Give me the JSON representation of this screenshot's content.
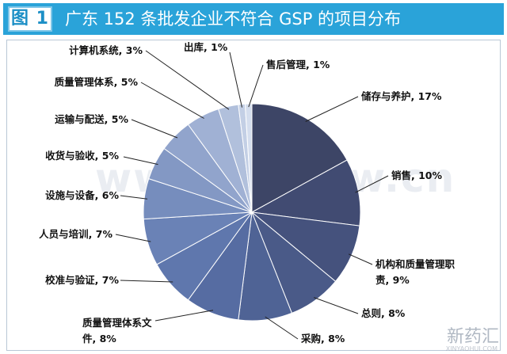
{
  "header": {
    "figure_label": "图 1",
    "title": "广东 152 条批发企业不符合 GSP 的项目分布",
    "background_color": "#2aa3d9"
  },
  "watermark": "www.yaosjw.cn",
  "brand": {
    "name": "新药汇",
    "sub": "XINYAOHUI.COM"
  },
  "chart_data": {
    "type": "pie",
    "title": "广东 152 条批发企业不符合 GSP 的项目分布",
    "slices": [
      {
        "label": "储存与养护, 17%",
        "value": 17,
        "color": "#3d4566"
      },
      {
        "label": "销售, 10%",
        "value": 10,
        "color": "#414b72"
      },
      {
        "label": "机构和质量管理职责, 9%",
        "value": 9,
        "color": "#45527d"
      },
      {
        "label": "总则, 8%",
        "value": 8,
        "color": "#4a5a88"
      },
      {
        "label": "采购, 8%",
        "value": 8,
        "color": "#4f6395"
      },
      {
        "label": "质量管理体系文件, 8%",
        "value": 8,
        "color": "#566ca2"
      },
      {
        "label": "校准与验证, 7%",
        "value": 7,
        "color": "#5f77ad"
      },
      {
        "label": "人员与培训, 7%",
        "value": 7,
        "color": "#6a82b6"
      },
      {
        "label": "设施与设备, 6%",
        "value": 6,
        "color": "#768dbd"
      },
      {
        "label": "收货与验收, 5%",
        "value": 5,
        "color": "#8398c4"
      },
      {
        "label": "运输与配送, 5%",
        "value": 5,
        "color": "#91a4cc"
      },
      {
        "label": "质量管理体系, 5%",
        "value": 5,
        "color": "#a0b1d4"
      },
      {
        "label": "计算机系统, 3%",
        "value": 3,
        "color": "#b1c0dc"
      },
      {
        "label": "出库, 1%",
        "value": 1,
        "color": "#c3cfe5"
      },
      {
        "label": "售后管理, 1%",
        "value": 1,
        "color": "#d5deee"
      }
    ]
  }
}
